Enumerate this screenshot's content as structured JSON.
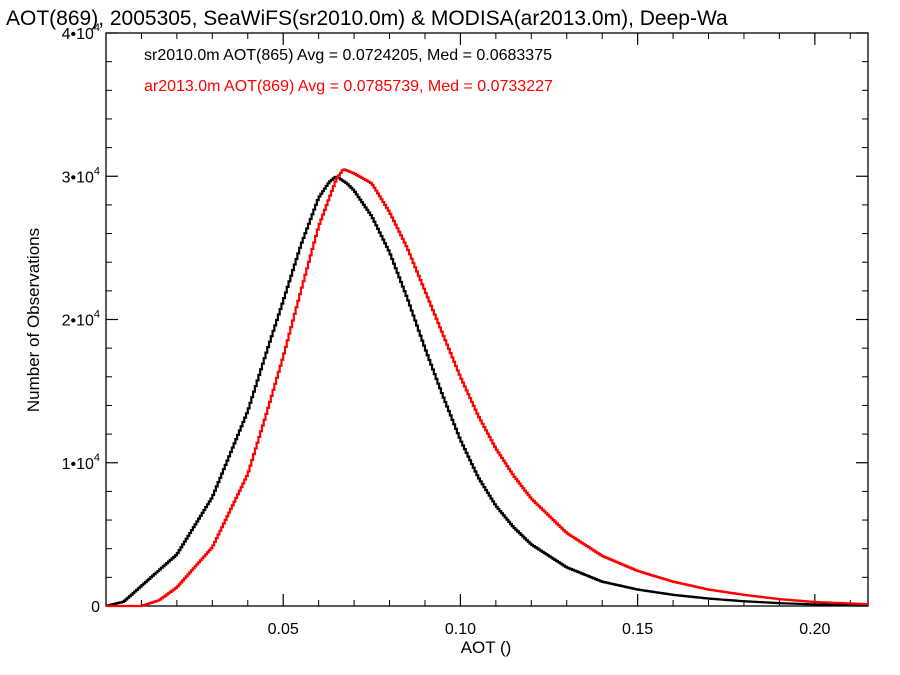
{
  "chart_data": {
    "type": "line",
    "title": "AOT(869), 2005305, SeaWiFS(sr2010.0m) & MODISA(ar2013.0m), Deep-Wa",
    "xlabel": "AOT ()",
    "ylabel": "Number of Observations",
    "xlim": [
      0.0,
      0.215
    ],
    "ylim": [
      0,
      40000
    ],
    "x_ticks": [
      {
        "value": 0.05,
        "label": "0.05"
      },
      {
        "value": 0.1,
        "label": "0.10"
      },
      {
        "value": 0.15,
        "label": "0.15"
      },
      {
        "value": 0.2,
        "label": "0.20"
      }
    ],
    "y_ticks": [
      {
        "value": 0,
        "label": "0"
      },
      {
        "value": 10000,
        "label": "1•10",
        "exp": "4"
      },
      {
        "value": 20000,
        "label": "2•10",
        "exp": "4"
      },
      {
        "value": 30000,
        "label": "3•10",
        "exp": "4"
      },
      {
        "value": 40000,
        "label": "4•10",
        "exp": "4"
      }
    ],
    "grid": false,
    "legend_position": "top-left",
    "series": [
      {
        "name": "sr2010.0m AOT(865) Avg = 0.0724205, Med = 0.0683375",
        "color": "#000000",
        "points": [
          [
            0.0,
            0
          ],
          [
            0.005,
            300
          ],
          [
            0.01,
            1400
          ],
          [
            0.02,
            3600
          ],
          [
            0.03,
            7600
          ],
          [
            0.04,
            13600
          ],
          [
            0.045,
            17500
          ],
          [
            0.05,
            21300
          ],
          [
            0.055,
            25200
          ],
          [
            0.06,
            28500
          ],
          [
            0.063,
            29600
          ],
          [
            0.065,
            30000
          ],
          [
            0.068,
            29500
          ],
          [
            0.07,
            29000
          ],
          [
            0.075,
            27200
          ],
          [
            0.08,
            24700
          ],
          [
            0.085,
            21500
          ],
          [
            0.09,
            18000
          ],
          [
            0.095,
            14700
          ],
          [
            0.1,
            11600
          ],
          [
            0.105,
            9000
          ],
          [
            0.11,
            7000
          ],
          [
            0.115,
            5500
          ],
          [
            0.12,
            4300
          ],
          [
            0.13,
            2700
          ],
          [
            0.14,
            1700
          ],
          [
            0.15,
            1150
          ],
          [
            0.16,
            780
          ],
          [
            0.17,
            520
          ],
          [
            0.18,
            330
          ],
          [
            0.19,
            200
          ],
          [
            0.2,
            110
          ],
          [
            0.215,
            40
          ]
        ]
      },
      {
        "name": "ar2013.0m AOT(869) Avg = 0.0785739, Med = 0.0733227",
        "color": "#ff0000",
        "points": [
          [
            0.0,
            0
          ],
          [
            0.01,
            0
          ],
          [
            0.015,
            400
          ],
          [
            0.02,
            1300
          ],
          [
            0.03,
            4100
          ],
          [
            0.04,
            9200
          ],
          [
            0.045,
            13200
          ],
          [
            0.05,
            17400
          ],
          [
            0.055,
            22000
          ],
          [
            0.06,
            26500
          ],
          [
            0.065,
            29800
          ],
          [
            0.067,
            30500
          ],
          [
            0.07,
            30200
          ],
          [
            0.075,
            29500
          ],
          [
            0.08,
            27500
          ],
          [
            0.085,
            25000
          ],
          [
            0.09,
            22000
          ],
          [
            0.095,
            19000
          ],
          [
            0.1,
            16000
          ],
          [
            0.105,
            13300
          ],
          [
            0.11,
            11000
          ],
          [
            0.115,
            9100
          ],
          [
            0.12,
            7500
          ],
          [
            0.13,
            5100
          ],
          [
            0.14,
            3500
          ],
          [
            0.15,
            2450
          ],
          [
            0.16,
            1700
          ],
          [
            0.17,
            1150
          ],
          [
            0.18,
            780
          ],
          [
            0.19,
            480
          ],
          [
            0.2,
            280
          ],
          [
            0.215,
            130
          ]
        ]
      }
    ]
  }
}
